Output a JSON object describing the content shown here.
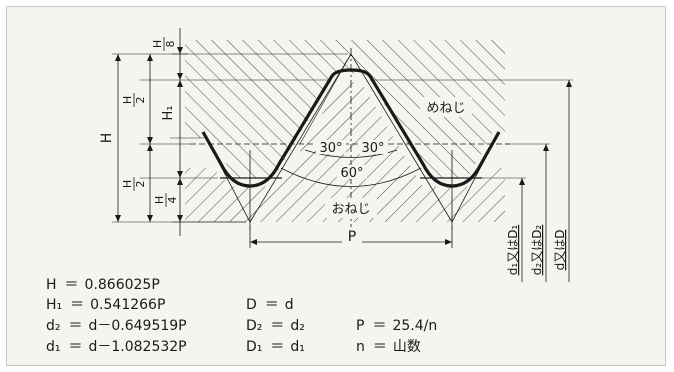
{
  "diagram": {
    "labels": {
      "h_eighth_num": "H",
      "h_eighth_den": "8",
      "h_half_num_top": "H",
      "h_half_den_top": "2",
      "h1": "H₁",
      "h_main": "H",
      "h_half_num_bot": "H",
      "h_half_den_bot": "2",
      "h_quarter_num": "H",
      "h_quarter_den": "4",
      "internal_thread": "めねじ",
      "external_thread": "おねじ",
      "angle_left": "30°",
      "angle_right": "30°",
      "angle_total": "60°",
      "pitch": "P",
      "d1_label": "d₁又はD₁",
      "d2_label": "d₂又はD₂",
      "d_label": "d又はD"
    },
    "colors": {
      "profile": "#1a1a1a",
      "hatch": "#3a3a3a",
      "background": "#f5f4ef"
    }
  },
  "formulas": {
    "col1": [
      {
        "lhs": "H",
        "rhs": "0.866025P"
      },
      {
        "lhs": "H₁",
        "rhs": "0.541266P"
      },
      {
        "lhs": "d₂",
        "rhs": "d－0.649519P"
      },
      {
        "lhs": "d₁",
        "rhs": "d－1.082532P"
      }
    ],
    "col2": [
      {
        "lhs": "D",
        "rhs": "d"
      },
      {
        "lhs": "D₂",
        "rhs": "d₂"
      },
      {
        "lhs": "D₁",
        "rhs": "d₁"
      }
    ],
    "col3": [
      {
        "lhs": "P",
        "rhs": "25.4/n"
      },
      {
        "lhs": "n",
        "rhs": "山数"
      }
    ]
  }
}
